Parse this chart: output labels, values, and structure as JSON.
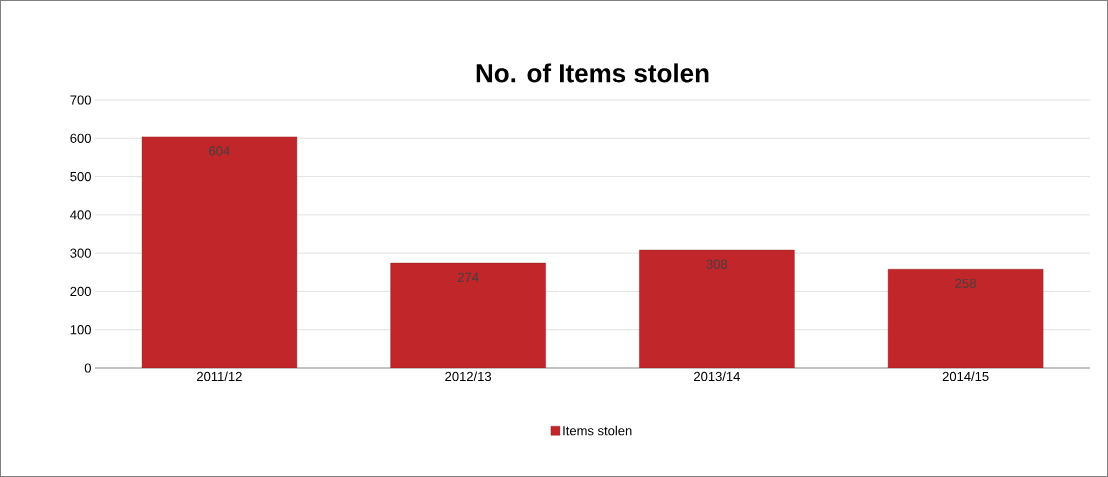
{
  "chart_data": {
    "type": "bar",
    "title": "No. of Items stolen",
    "categories": [
      "2011/12",
      "2012/13",
      "2013/14",
      "2014/15"
    ],
    "series": [
      {
        "name": "Items stolen",
        "color": "#c0262a",
        "values": [
          604,
          274,
          308,
          258
        ]
      }
    ],
    "data_labels": true,
    "ylim": [
      0,
      700
    ],
    "yticks": [
      0,
      100,
      200,
      300,
      400,
      500,
      600,
      700
    ],
    "grid": "y",
    "legend": "bottom"
  }
}
